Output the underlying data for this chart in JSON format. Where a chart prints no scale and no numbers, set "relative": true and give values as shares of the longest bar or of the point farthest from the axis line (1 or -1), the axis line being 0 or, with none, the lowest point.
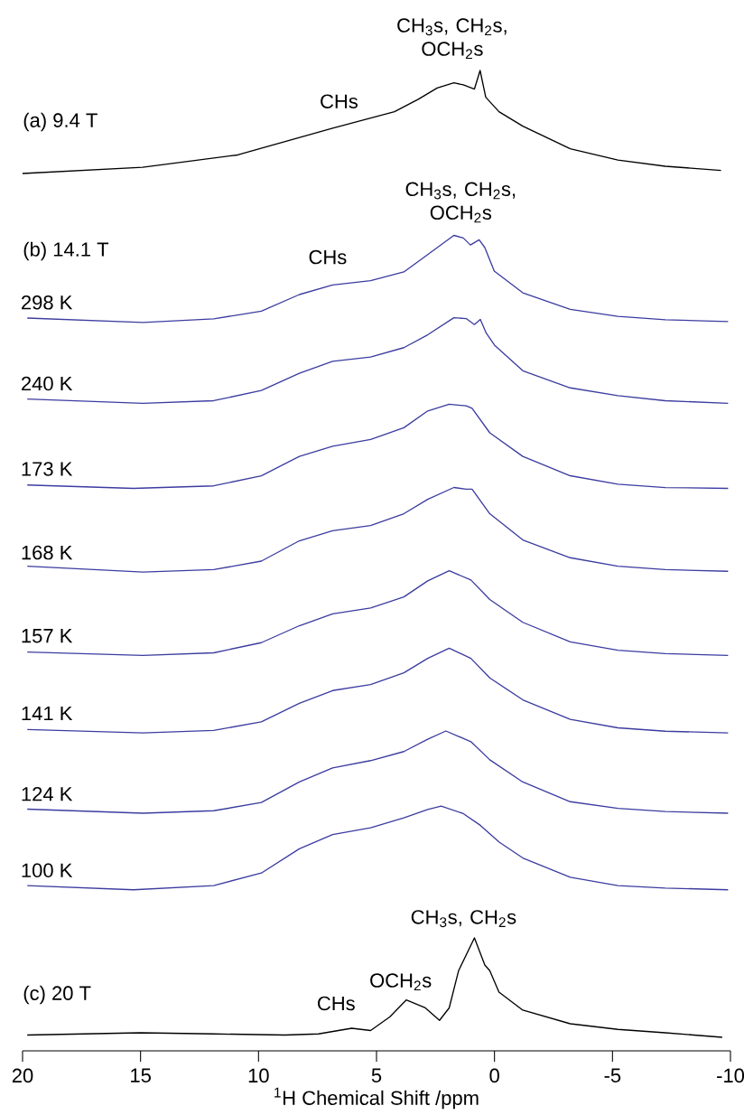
{
  "chart_data": [
    {
      "type": "line",
      "relative": true,
      "title": "(a) 9.4 T",
      "xlim": [
        20,
        -10
      ],
      "tick_labels": false,
      "annotations": [
        "CHs",
        "CH$_{3}$s, CH$_{2}$s, OCH$_{2}$s"
      ],
      "series": [
        {
          "color": "#000000",
          "x": [
            20,
            14.91,
            10.88,
            8.87,
            6.86,
            4.24,
            3.23,
            2.43,
            1.72,
            1.32,
            0.85,
            0.61,
            0.37,
            -0.19,
            -1.2,
            -3.21,
            -5.23,
            -7.24,
            -9.6
          ],
          "values": [
            0,
            0.06,
            0.18,
            0.31,
            0.44,
            0.6,
            0.72,
            0.83,
            0.88,
            0.86,
            0.82,
            1,
            0.74,
            0.6,
            0.46,
            0.24,
            0.13,
            0.07,
            0.03
          ]
        }
      ]
    },
    {
      "type": "line",
      "relative": true,
      "title": "(b) 14.1 T",
      "xlim": [
        20,
        -10
      ],
      "tick_labels": false,
      "annotations": [
        "CHs",
        "CH$_{3}$s, CH$_{2}$s, OCH$_{2}$s"
      ],
      "series": [
        {
          "name": "298 K",
          "color": "#3c3ca0",
          "x": [
            19.8,
            14.9,
            11.9,
            9.88,
            8.27,
            6.86,
            5.25,
            3.84,
            2.83,
            1.72,
            1.32,
            1.02,
            0.65,
            0.41,
            0.01,
            -1.2,
            -3.21,
            -5.23,
            -7.24,
            -9.9
          ],
          "values": [
            0.05,
            0,
            0.04,
            0.13,
            0.32,
            0.43,
            0.48,
            0.58,
            0.78,
            1,
            0.97,
            0.89,
            0.95,
            0.86,
            0.59,
            0.34,
            0.15,
            0.07,
            0.03,
            0.01
          ]
        }
      ]
    },
    {
      "type": "line",
      "relative": true,
      "xlim": [
        20,
        -10
      ],
      "tick_labels": false,
      "series": [
        {
          "name": "240 K",
          "color": "#3c3ca0",
          "x": [
            19.8,
            14.9,
            11.9,
            9.88,
            8.27,
            6.86,
            5.25,
            3.84,
            2.83,
            1.72,
            1.2,
            0.85,
            0.6,
            0.35,
            0.0,
            -1.2,
            -3.21,
            -5.23,
            -7.24,
            -9.9
          ],
          "values": [
            0.05,
            0,
            0.03,
            0.15,
            0.35,
            0.49,
            0.54,
            0.65,
            0.8,
            1,
            0.99,
            0.92,
            0.98,
            0.82,
            0.68,
            0.38,
            0.18,
            0.09,
            0.03,
            0
          ]
        }
      ]
    },
    {
      "type": "line",
      "relative": true,
      "xlim": [
        20,
        -10
      ],
      "tick_labels": false,
      "series": [
        {
          "name": "173 K",
          "color": "#3c3ca0",
          "x": [
            19.8,
            15.3,
            11.9,
            9.88,
            8.27,
            6.86,
            5.25,
            3.84,
            2.83,
            1.92,
            1.2,
            0.95,
            0.2,
            -1.2,
            -3.21,
            -5.23,
            -7.24,
            -9.9
          ],
          "values": [
            0.04,
            0,
            0.03,
            0.15,
            0.38,
            0.5,
            0.58,
            0.72,
            0.92,
            1,
            0.98,
            0.95,
            0.66,
            0.38,
            0.15,
            0.05,
            0.01,
            0
          ]
        }
      ]
    },
    {
      "type": "line",
      "relative": true,
      "xlim": [
        20,
        -10
      ],
      "tick_labels": false,
      "series": [
        {
          "name": "168 K",
          "color": "#3c3ca0",
          "x": [
            19.8,
            14.9,
            11.9,
            9.88,
            8.27,
            6.86,
            5.25,
            3.84,
            2.83,
            1.72,
            1.2,
            0.95,
            0.2,
            -1.2,
            -3.21,
            -5.23,
            -7.24,
            -9.9
          ],
          "values": [
            0.07,
            0,
            0.03,
            0.13,
            0.37,
            0.49,
            0.55,
            0.69,
            0.86,
            1,
            0.98,
            0.98,
            0.69,
            0.38,
            0.17,
            0.07,
            0.03,
            0.01
          ]
        }
      ]
    },
    {
      "type": "line",
      "relative": true,
      "xlim": [
        20,
        -10
      ],
      "tick_labels": false,
      "series": [
        {
          "name": "157 K",
          "color": "#3c3ca0",
          "x": [
            19.8,
            14.9,
            11.9,
            9.88,
            8.27,
            6.86,
            5.25,
            3.84,
            2.83,
            1.92,
            1.0,
            0.2,
            -1.2,
            -3.21,
            -5.23,
            -7.24,
            -9.9
          ],
          "values": [
            0.04,
            0,
            0.03,
            0.15,
            0.35,
            0.49,
            0.56,
            0.69,
            0.88,
            1,
            0.89,
            0.66,
            0.39,
            0.16,
            0.06,
            0.02,
            0
          ]
        }
      ]
    },
    {
      "type": "line",
      "relative": true,
      "xlim": [
        20,
        -10
      ],
      "tick_labels": false,
      "series": [
        {
          "name": "141 K",
          "color": "#3c3ca0",
          "x": [
            19.8,
            14.9,
            11.9,
            9.88,
            8.27,
            6.86,
            5.25,
            3.84,
            2.83,
            1.92,
            1.0,
            0.2,
            -1.2,
            -3.21,
            -5.23,
            -7.24,
            -9.9
          ],
          "values": [
            0.04,
            0,
            0.03,
            0.13,
            0.35,
            0.5,
            0.57,
            0.71,
            0.88,
            1,
            0.88,
            0.65,
            0.39,
            0.16,
            0.06,
            0.02,
            0
          ]
        }
      ]
    },
    {
      "type": "line",
      "relative": true,
      "xlim": [
        20,
        -10
      ],
      "tick_labels": false,
      "series": [
        {
          "name": "124 K",
          "color": "#3c3ca0",
          "x": [
            19.8,
            14.9,
            11.9,
            9.88,
            8.27,
            6.86,
            5.25,
            3.84,
            2.83,
            2.06,
            1.0,
            0.2,
            -1.2,
            -3.21,
            -5.23,
            -7.24,
            -9.9
          ],
          "values": [
            0.05,
            0,
            0.03,
            0.13,
            0.38,
            0.55,
            0.64,
            0.75,
            0.9,
            1,
            0.87,
            0.65,
            0.38,
            0.14,
            0.06,
            0.02,
            0
          ]
        }
      ]
    },
    {
      "type": "line",
      "relative": true,
      "xlim": [
        20,
        -10
      ],
      "tick_labels": false,
      "series": [
        {
          "name": "100 K",
          "color": "#3c3ca0",
          "x": [
            19.8,
            15.3,
            11.9,
            9.88,
            8.27,
            6.86,
            5.25,
            3.84,
            2.83,
            2.26,
            1.32,
            0.6,
            -0.2,
            -1.2,
            -3.21,
            -5.23,
            -7.24,
            -9.9
          ],
          "values": [
            0.05,
            0,
            0.05,
            0.2,
            0.49,
            0.66,
            0.74,
            0.86,
            0.96,
            1,
            0.91,
            0.77,
            0.57,
            0.38,
            0.15,
            0.05,
            0.02,
            0
          ]
        }
      ]
    },
    {
      "type": "line",
      "relative": true,
      "title": "(c) 20 T",
      "xlabel": "$^{1}$H Chemical Shift /ppm",
      "xlim": [
        20,
        -10
      ],
      "xticks": [
        20,
        15,
        10,
        5,
        0,
        -5,
        -10
      ],
      "tick_labels": "x",
      "annotations": [
        "CHs",
        "OCH$_{2}$s",
        "CH$_{3}$s, CH$_{2}$s"
      ],
      "series": [
        {
          "color": "#000000",
          "x": [
            19.8,
            15,
            11.9,
            8.87,
            7.46,
            6.05,
            5.25,
            4.44,
            3.74,
            2.93,
            2.33,
            1.92,
            1.52,
            0.85,
            0.41,
            0.2,
            -0.19,
            -1.2,
            -3.21,
            -5.23,
            -7.24,
            -9.65
          ],
          "values": [
            0.14,
            0.16,
            0.15,
            0.14,
            0.15,
            0.2,
            0.18,
            0.3,
            0.45,
            0.38,
            0.27,
            0.38,
            0.71,
            1,
            0.76,
            0.71,
            0.52,
            0.36,
            0.24,
            0.19,
            0.16,
            0.12
          ]
        }
      ]
    }
  ]
}
